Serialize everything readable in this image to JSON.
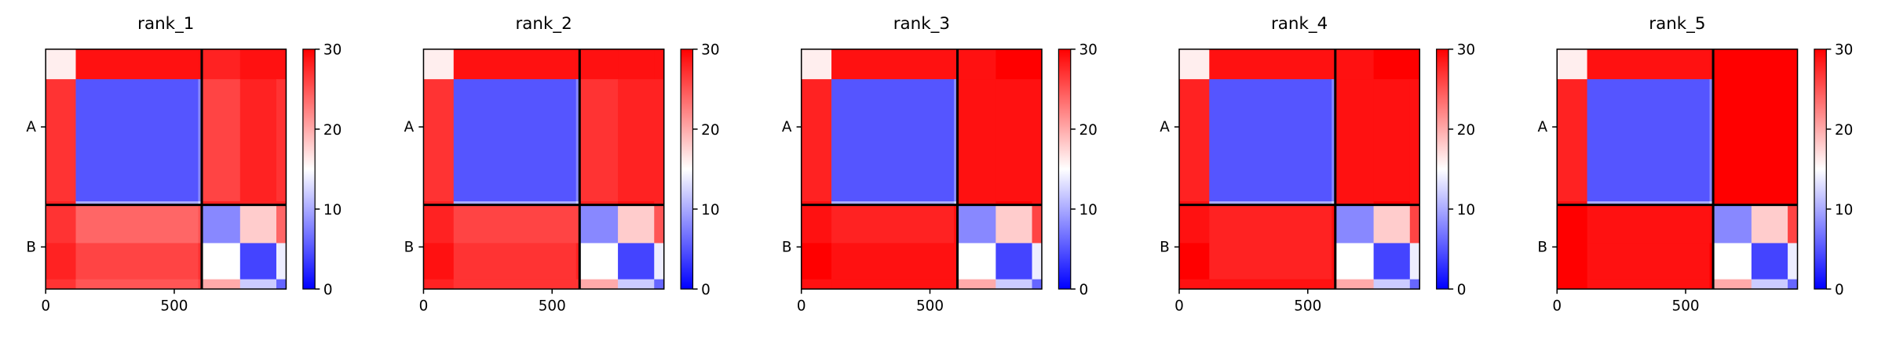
{
  "chart_data": [
    {
      "type": "heatmap",
      "title": "rank_1",
      "bins": [
        0,
        117,
        593,
        607,
        756,
        897,
        935
      ],
      "values": [
        [
          16,
          29,
          29,
          28,
          29,
          29
        ],
        [
          27,
          5,
          8,
          26,
          28,
          27
        ],
        [
          28,
          10,
          12,
          28,
          28,
          28
        ],
        [
          27,
          24,
          25,
          8,
          18,
          24
        ],
        [
          28,
          26,
          27,
          15,
          4,
          14
        ],
        [
          27,
          25,
          26,
          20,
          12,
          6
        ]
      ],
      "xlim": [
        0,
        935
      ],
      "ylim": [
        935,
        0
      ],
      "xticks": [
        0,
        500
      ],
      "yticks": [
        {
          "value": 303,
          "label": "A"
        },
        {
          "value": 771,
          "label": "B"
        }
      ],
      "chain_breaks": [
        607
      ],
      "colorbar": {
        "lim": [
          0,
          30
        ],
        "ticks": [
          0,
          10,
          20,
          30
        ],
        "colors": [
          "#0000ff",
          "#ffffff",
          "#ff0000"
        ]
      }
    },
    {
      "type": "heatmap",
      "title": "rank_2",
      "bins": [
        0,
        117,
        593,
        607,
        756,
        897,
        935
      ],
      "values": [
        [
          16,
          29,
          29,
          29,
          29,
          29
        ],
        [
          27,
          5,
          8,
          27,
          28,
          28
        ],
        [
          28,
          10,
          12,
          28,
          29,
          28
        ],
        [
          28,
          26,
          26,
          8,
          18,
          25
        ],
        [
          29,
          27,
          28,
          15,
          4,
          14
        ],
        [
          28,
          27,
          27,
          20,
          12,
          6
        ]
      ],
      "xlim": [
        0,
        935
      ],
      "ylim": [
        935,
        0
      ],
      "xticks": [
        0,
        500
      ],
      "yticks": [
        {
          "value": 303,
          "label": "A"
        },
        {
          "value": 771,
          "label": "B"
        }
      ],
      "chain_breaks": [
        607
      ],
      "colorbar": {
        "lim": [
          0,
          30
        ],
        "ticks": [
          0,
          10,
          20,
          30
        ],
        "colors": [
          "#0000ff",
          "#ffffff",
          "#ff0000"
        ]
      }
    },
    {
      "type": "heatmap",
      "title": "rank_3",
      "bins": [
        0,
        117,
        593,
        607,
        756,
        897,
        935
      ],
      "values": [
        [
          16,
          29,
          29,
          29,
          30,
          30
        ],
        [
          28,
          5,
          8,
          29,
          29,
          29
        ],
        [
          29,
          10,
          12,
          29,
          30,
          29
        ],
        [
          29,
          28,
          29,
          8,
          18,
          26
        ],
        [
          30,
          29,
          29,
          15,
          4,
          14
        ],
        [
          29,
          29,
          29,
          20,
          12,
          6
        ]
      ],
      "xlim": [
        0,
        935
      ],
      "ylim": [
        935,
        0
      ],
      "xticks": [
        0,
        500
      ],
      "yticks": [
        {
          "value": 303,
          "label": "A"
        },
        {
          "value": 771,
          "label": "B"
        }
      ],
      "chain_breaks": [
        607
      ],
      "colorbar": {
        "lim": [
          0,
          30
        ],
        "ticks": [
          0,
          10,
          20,
          30
        ],
        "colors": [
          "#0000ff",
          "#ffffff",
          "#ff0000"
        ]
      }
    },
    {
      "type": "heatmap",
      "title": "rank_4",
      "bins": [
        0,
        117,
        593,
        607,
        756,
        897,
        935
      ],
      "values": [
        [
          16,
          29,
          29,
          29,
          30,
          30
        ],
        [
          28,
          5,
          8,
          29,
          29,
          29
        ],
        [
          29,
          10,
          12,
          29,
          30,
          29
        ],
        [
          29,
          28,
          29,
          8,
          18,
          26
        ],
        [
          30,
          28,
          29,
          15,
          4,
          14
        ],
        [
          29,
          29,
          29,
          20,
          12,
          6
        ]
      ],
      "xlim": [
        0,
        935
      ],
      "ylim": [
        935,
        0
      ],
      "xticks": [
        0,
        500
      ],
      "yticks": [
        {
          "value": 303,
          "label": "A"
        },
        {
          "value": 771,
          "label": "B"
        }
      ],
      "chain_breaks": [
        607
      ],
      "colorbar": {
        "lim": [
          0,
          30
        ],
        "ticks": [
          0,
          10,
          20,
          30
        ],
        "colors": [
          "#0000ff",
          "#ffffff",
          "#ff0000"
        ]
      }
    },
    {
      "type": "heatmap",
      "title": "rank_5",
      "bins": [
        0,
        117,
        593,
        607,
        756,
        897,
        935
      ],
      "values": [
        [
          16,
          29,
          29,
          30,
          30,
          30
        ],
        [
          28,
          5,
          8,
          30,
          30,
          30
        ],
        [
          29,
          10,
          12,
          30,
          30,
          30
        ],
        [
          30,
          29,
          29,
          8,
          18,
          26
        ],
        [
          30,
          29,
          30,
          15,
          4,
          14
        ],
        [
          30,
          29,
          30,
          20,
          12,
          6
        ]
      ],
      "xlim": [
        0,
        935
      ],
      "ylim": [
        935,
        0
      ],
      "xticks": [
        0,
        500
      ],
      "yticks": [
        {
          "value": 303,
          "label": "A"
        },
        {
          "value": 771,
          "label": "B"
        }
      ],
      "chain_breaks": [
        607
      ],
      "colorbar": {
        "lim": [
          0,
          30
        ],
        "ticks": [
          0,
          10,
          20,
          30
        ],
        "colors": [
          "#0000ff",
          "#ffffff",
          "#ff0000"
        ]
      }
    }
  ]
}
